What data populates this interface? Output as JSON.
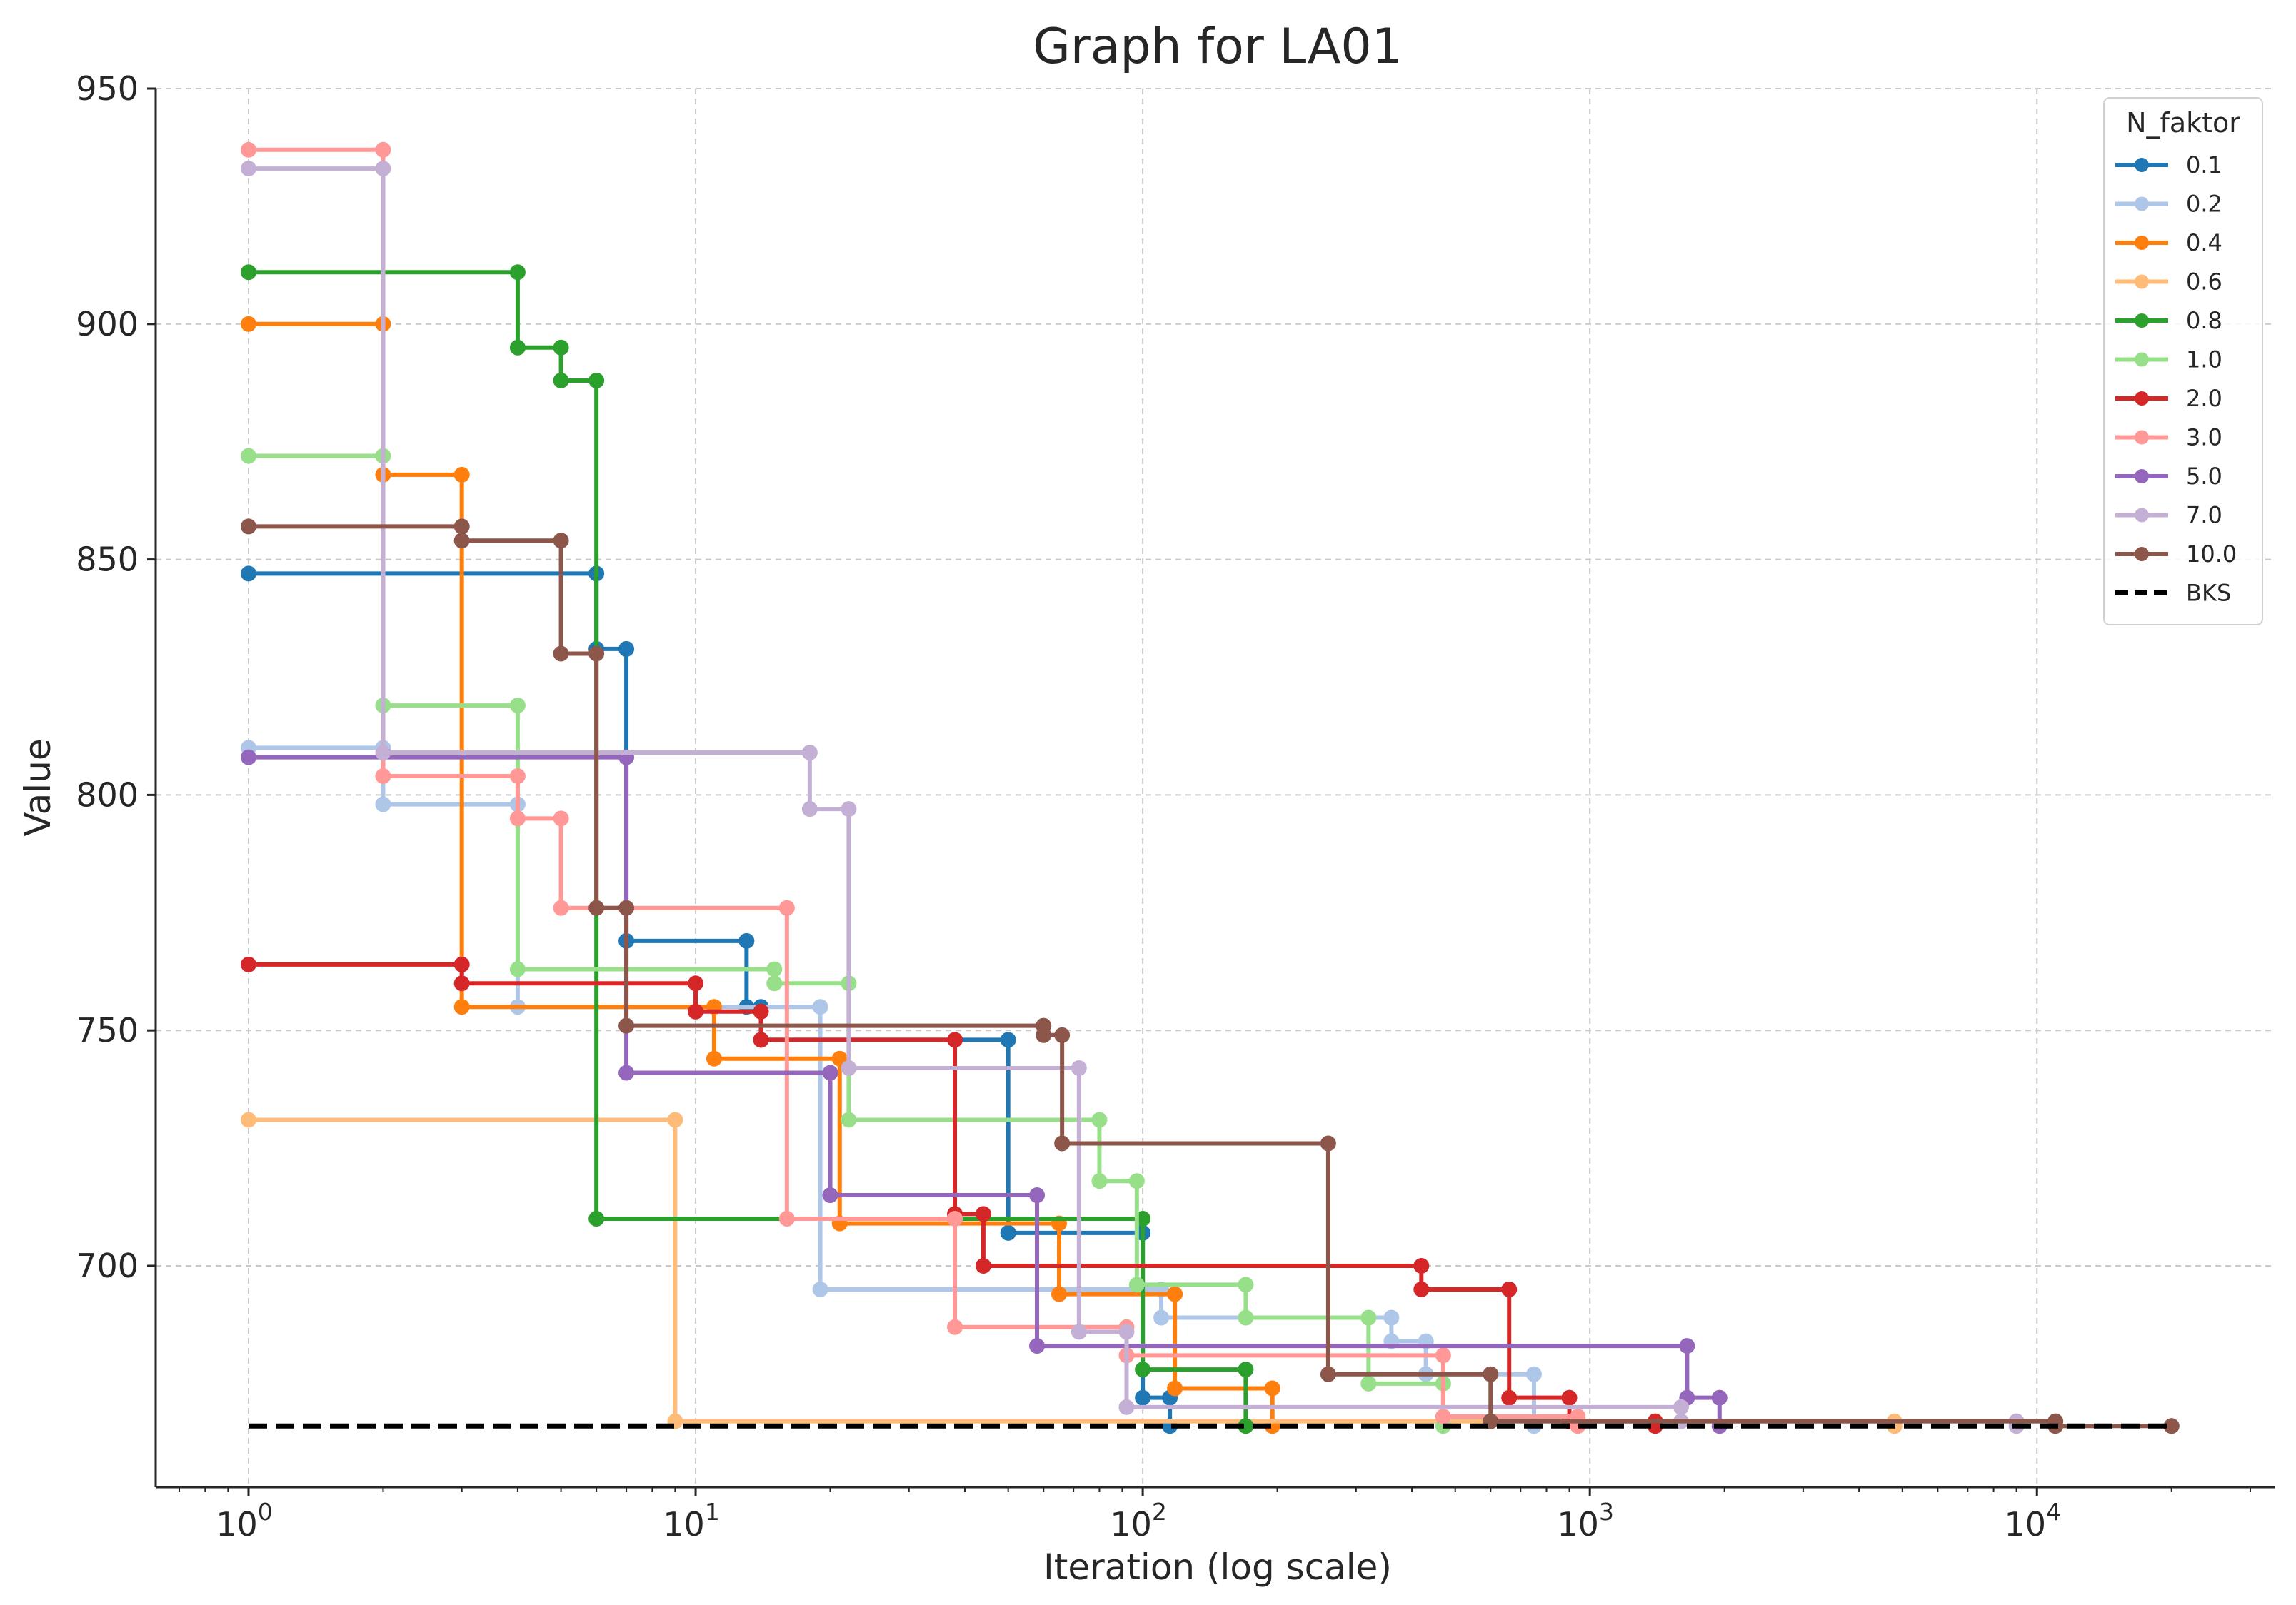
{
  "chart_data": {
    "type": "line",
    "step": "post",
    "title": "Graph for LA01",
    "xlabel": "Iteration (log scale)",
    "ylabel": "Value",
    "xscale": "log",
    "xlim": [
      0.62,
      34000
    ],
    "ylim": [
      653,
      950
    ],
    "yticks": [
      700,
      750,
      800,
      850,
      900,
      950
    ],
    "xticks": [
      {
        "value": 1,
        "base": "10",
        "exp": "0"
      },
      {
        "value": 10,
        "base": "10",
        "exp": "1"
      },
      {
        "value": 100,
        "base": "10",
        "exp": "2"
      },
      {
        "value": 1000,
        "base": "10",
        "exp": "3"
      },
      {
        "value": 10000,
        "base": "10",
        "exp": "4"
      }
    ],
    "grid": true,
    "legend": {
      "title": "N_faktor",
      "position": "top-right"
    },
    "series": [
      {
        "name": "0.1",
        "color": "#1f77b4",
        "points": [
          [
            1,
            847
          ],
          [
            6,
            831
          ],
          [
            7,
            769
          ],
          [
            13,
            755
          ],
          [
            14,
            748
          ],
          [
            50,
            707
          ],
          [
            100,
            672
          ],
          [
            115,
            666
          ]
        ]
      },
      {
        "name": "0.2",
        "color": "#aec7e8",
        "points": [
          [
            1,
            810
          ],
          [
            2,
            798
          ],
          [
            4,
            755
          ],
          [
            19,
            695
          ],
          [
            110,
            689
          ],
          [
            360,
            684
          ],
          [
            430,
            677
          ],
          [
            750,
            666
          ]
        ]
      },
      {
        "name": "0.4",
        "color": "#ff7f0e",
        "points": [
          [
            1,
            900
          ],
          [
            2,
            868
          ],
          [
            3,
            755
          ],
          [
            11,
            744
          ],
          [
            21,
            709
          ],
          [
            65,
            694
          ],
          [
            118,
            674
          ],
          [
            195,
            666
          ]
        ]
      },
      {
        "name": "0.6",
        "color": "#ffbb78",
        "points": [
          [
            1,
            731
          ],
          [
            9,
            667
          ],
          [
            4800,
            666
          ]
        ]
      },
      {
        "name": "0.8",
        "color": "#2ca02c",
        "points": [
          [
            1,
            911
          ],
          [
            4,
            895
          ],
          [
            5,
            888
          ],
          [
            6,
            710
          ],
          [
            100,
            678
          ],
          [
            170,
            666
          ]
        ]
      },
      {
        "name": "1.0",
        "color": "#98df8a",
        "points": [
          [
            1,
            872
          ],
          [
            2,
            819
          ],
          [
            4,
            763
          ],
          [
            15,
            760
          ],
          [
            22,
            731
          ],
          [
            80,
            718
          ],
          [
            97,
            696
          ],
          [
            170,
            689
          ],
          [
            320,
            675
          ],
          [
            470,
            666
          ]
        ]
      },
      {
        "name": "2.0",
        "color": "#d62728",
        "points": [
          [
            1,
            764
          ],
          [
            3,
            760
          ],
          [
            10,
            754
          ],
          [
            14,
            748
          ],
          [
            38,
            711
          ],
          [
            44,
            700
          ],
          [
            420,
            695
          ],
          [
            660,
            672
          ],
          [
            900,
            667
          ],
          [
            1400,
            666
          ]
        ]
      },
      {
        "name": "3.0",
        "color": "#ff9896",
        "points": [
          [
            1,
            937
          ],
          [
            2,
            804
          ],
          [
            4,
            795
          ],
          [
            5,
            776
          ],
          [
            16,
            710
          ],
          [
            38,
            687
          ],
          [
            92,
            681
          ],
          [
            470,
            668
          ],
          [
            940,
            666
          ]
        ]
      },
      {
        "name": "5.0",
        "color": "#9467bd",
        "points": [
          [
            1,
            808
          ],
          [
            7,
            741
          ],
          [
            20,
            715
          ],
          [
            58,
            683
          ],
          [
            1650,
            672
          ],
          [
            1950,
            666
          ]
        ]
      },
      {
        "name": "7.0",
        "color": "#c5b0d5",
        "points": [
          [
            1,
            933
          ],
          [
            2,
            809
          ],
          [
            18,
            797
          ],
          [
            22,
            742
          ],
          [
            72,
            686
          ],
          [
            92,
            670
          ],
          [
            1600,
            667
          ],
          [
            9000,
            666
          ]
        ]
      },
      {
        "name": "10.0",
        "color": "#8c564b",
        "points": [
          [
            1,
            857
          ],
          [
            3,
            854
          ],
          [
            5,
            830
          ],
          [
            6,
            776
          ],
          [
            7,
            751
          ],
          [
            60,
            749
          ],
          [
            66,
            726
          ],
          [
            260,
            677
          ],
          [
            600,
            667
          ],
          [
            11000,
            666
          ],
          [
            20000,
            666
          ]
        ]
      }
    ],
    "reference": {
      "name": "BKS",
      "value": 666,
      "color": "#000000",
      "x_range": [
        1,
        20000
      ]
    }
  }
}
